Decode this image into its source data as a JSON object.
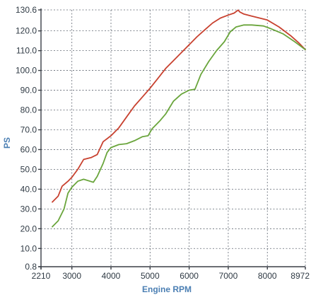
{
  "chart_data": {
    "type": "line",
    "xlabel": "Engine RPM",
    "ylabel": "PS",
    "xlim": [
      2210,
      8972
    ],
    "ylim": [
      0.8,
      130.6
    ],
    "x_ticks": [
      2210,
      3000,
      4000,
      5000,
      6000,
      7000,
      8000,
      8972
    ],
    "y_ticks": [
      0.8,
      10.0,
      20.0,
      30.0,
      40.0,
      50.0,
      60.0,
      70.0,
      80.0,
      90.0,
      100.0,
      110.0,
      120.0,
      130.6
    ],
    "x_tick_labels": [
      "2210",
      "3000",
      "4000",
      "5000",
      "6000",
      "7000",
      "8000",
      "8972"
    ],
    "y_tick_labels": [
      "0.8",
      "10.0",
      "20.0",
      "30.0",
      "40.0",
      "50.0",
      "60.0",
      "70.0",
      "80.0",
      "90.0",
      "100.0",
      "110.0",
      "120.0",
      "130.6"
    ],
    "grid": true,
    "legend": "none",
    "series": [
      {
        "color": "#c8412f",
        "points": [
          [
            2500,
            33.5
          ],
          [
            2650,
            36.5
          ],
          [
            2750,
            41.5
          ],
          [
            2900,
            44
          ],
          [
            3000,
            46
          ],
          [
            3150,
            50
          ],
          [
            3300,
            55
          ],
          [
            3500,
            56
          ],
          [
            3650,
            57.5
          ],
          [
            3800,
            64
          ],
          [
            4000,
            67
          ],
          [
            4200,
            71
          ],
          [
            4400,
            76.5
          ],
          [
            4600,
            82
          ],
          [
            4800,
            86.5
          ],
          [
            5000,
            91
          ],
          [
            5200,
            96
          ],
          [
            5400,
            101
          ],
          [
            5600,
            105
          ],
          [
            5800,
            109
          ],
          [
            6000,
            113
          ],
          [
            6200,
            117
          ],
          [
            6400,
            120.5
          ],
          [
            6600,
            124
          ],
          [
            6800,
            126.5
          ],
          [
            7000,
            128
          ],
          [
            7150,
            129
          ],
          [
            7250,
            130.5
          ],
          [
            7300,
            129.5
          ],
          [
            7400,
            128.5
          ],
          [
            7600,
            127.5
          ],
          [
            7800,
            126.5
          ],
          [
            8000,
            125.5
          ],
          [
            8300,
            122
          ],
          [
            8600,
            117.5
          ],
          [
            8800,
            114
          ],
          [
            8972,
            110.5
          ]
        ]
      },
      {
        "color": "#6aa53c",
        "points": [
          [
            2500,
            21
          ],
          [
            2650,
            24
          ],
          [
            2800,
            30
          ],
          [
            2900,
            38
          ],
          [
            3000,
            41
          ],
          [
            3150,
            44
          ],
          [
            3300,
            45
          ],
          [
            3550,
            43.5
          ],
          [
            3650,
            46.5
          ],
          [
            3800,
            53
          ],
          [
            3900,
            58.5
          ],
          [
            4000,
            61
          ],
          [
            4200,
            62.5
          ],
          [
            4400,
            63
          ],
          [
            4600,
            64.5
          ],
          [
            4800,
            66.5
          ],
          [
            4950,
            67
          ],
          [
            5050,
            70.5
          ],
          [
            5250,
            74.5
          ],
          [
            5400,
            78
          ],
          [
            5600,
            84.5
          ],
          [
            5800,
            88
          ],
          [
            6000,
            90
          ],
          [
            6150,
            90.5
          ],
          [
            6300,
            98
          ],
          [
            6500,
            104.5
          ],
          [
            6700,
            110
          ],
          [
            6900,
            114.5
          ],
          [
            7050,
            119.5
          ],
          [
            7200,
            122
          ],
          [
            7400,
            123
          ],
          [
            7600,
            123
          ],
          [
            7900,
            122.5
          ],
          [
            8100,
            121
          ],
          [
            8400,
            118.5
          ],
          [
            8700,
            114.5
          ],
          [
            8972,
            110.5
          ]
        ]
      }
    ]
  }
}
